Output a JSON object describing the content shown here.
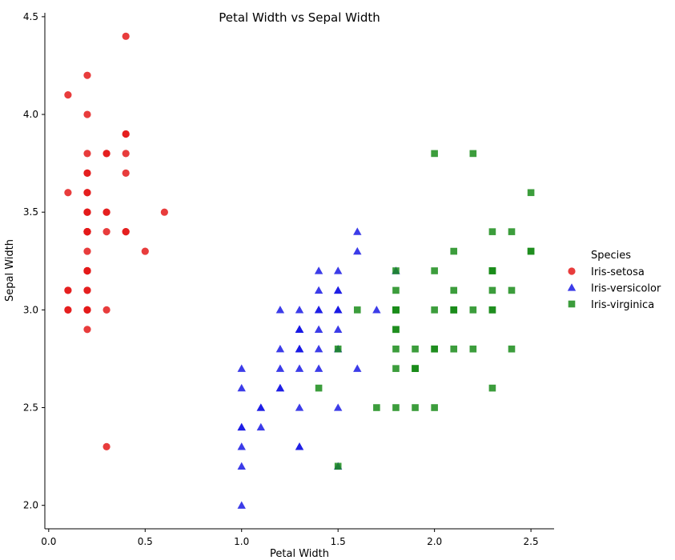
{
  "chart_data": {
    "type": "scatter",
    "title": "Petal Width vs Sepal Width",
    "xlabel": "Petal Width",
    "ylabel": "Sepal Width",
    "xlim": [
      -0.02,
      2.62
    ],
    "ylim": [
      1.88,
      4.52
    ],
    "xticks": [
      0.0,
      0.5,
      1.0,
      1.5,
      2.0,
      2.5
    ],
    "xtick_labels": [
      "0.0",
      "0.5",
      "1.0",
      "1.5",
      "2.0",
      "2.5"
    ],
    "yticks": [
      2.0,
      2.5,
      3.0,
      3.5,
      4.0,
      4.5
    ],
    "ytick_labels": [
      "2.0",
      "2.5",
      "3.0",
      "3.5",
      "4.0",
      "4.5"
    ],
    "grid": false,
    "legend_title": "Species",
    "legend_position": "right",
    "series": [
      {
        "name": "Iris-setosa",
        "color": "#e41a1a",
        "marker": "circle",
        "points": [
          [
            0.2,
            3.5
          ],
          [
            0.2,
            3.0
          ],
          [
            0.2,
            3.2
          ],
          [
            0.2,
            3.1
          ],
          [
            0.2,
            3.6
          ],
          [
            0.4,
            3.9
          ],
          [
            0.3,
            3.4
          ],
          [
            0.2,
            3.4
          ],
          [
            0.2,
            2.9
          ],
          [
            0.1,
            3.1
          ],
          [
            0.2,
            3.7
          ],
          [
            0.2,
            3.4
          ],
          [
            0.1,
            3.0
          ],
          [
            0.1,
            3.0
          ],
          [
            0.2,
            4.0
          ],
          [
            0.4,
            4.4
          ],
          [
            0.4,
            3.9
          ],
          [
            0.3,
            3.5
          ],
          [
            0.3,
            3.8
          ],
          [
            0.3,
            3.8
          ],
          [
            0.2,
            3.4
          ],
          [
            0.4,
            3.7
          ],
          [
            0.2,
            3.6
          ],
          [
            0.5,
            3.3
          ],
          [
            0.2,
            3.4
          ],
          [
            0.2,
            3.0
          ],
          [
            0.4,
            3.4
          ],
          [
            0.2,
            3.5
          ],
          [
            0.2,
            3.4
          ],
          [
            0.2,
            3.2
          ],
          [
            0.2,
            3.1
          ],
          [
            0.4,
            3.4
          ],
          [
            0.1,
            4.1
          ],
          [
            0.2,
            4.2
          ],
          [
            0.1,
            3.1
          ],
          [
            0.2,
            3.2
          ],
          [
            0.2,
            3.5
          ],
          [
            0.1,
            3.6
          ],
          [
            0.2,
            3.0
          ],
          [
            0.2,
            3.4
          ],
          [
            0.3,
            3.5
          ],
          [
            0.3,
            2.3
          ],
          [
            0.2,
            3.2
          ],
          [
            0.6,
            3.5
          ],
          [
            0.4,
            3.8
          ],
          [
            0.3,
            3.0
          ],
          [
            0.2,
            3.8
          ],
          [
            0.2,
            3.2
          ],
          [
            0.2,
            3.7
          ],
          [
            0.2,
            3.3
          ]
        ]
      },
      {
        "name": "Iris-versicolor",
        "color": "#1a1ae4",
        "marker": "triangle",
        "points": [
          [
            1.4,
            3.2
          ],
          [
            1.5,
            3.2
          ],
          [
            1.5,
            3.1
          ],
          [
            1.3,
            2.3
          ],
          [
            1.5,
            2.8
          ],
          [
            1.3,
            2.8
          ],
          [
            1.6,
            3.3
          ],
          [
            1.0,
            2.4
          ],
          [
            1.3,
            2.9
          ],
          [
            1.4,
            2.7
          ],
          [
            1.0,
            2.0
          ],
          [
            1.5,
            3.0
          ],
          [
            1.0,
            2.2
          ],
          [
            1.4,
            2.9
          ],
          [
            1.3,
            2.9
          ],
          [
            1.4,
            3.1
          ],
          [
            1.5,
            3.0
          ],
          [
            1.0,
            2.7
          ],
          [
            1.5,
            2.2
          ],
          [
            1.1,
            2.5
          ],
          [
            1.8,
            3.2
          ],
          [
            1.3,
            2.8
          ],
          [
            1.5,
            2.5
          ],
          [
            1.2,
            2.8
          ],
          [
            1.3,
            2.9
          ],
          [
            1.4,
            3.0
          ],
          [
            1.4,
            2.8
          ],
          [
            1.7,
            3.0
          ],
          [
            1.5,
            2.9
          ],
          [
            1.0,
            2.6
          ],
          [
            1.1,
            2.4
          ],
          [
            1.0,
            2.4
          ],
          [
            1.2,
            2.7
          ],
          [
            1.6,
            2.7
          ],
          [
            1.5,
            3.0
          ],
          [
            1.6,
            3.4
          ],
          [
            1.5,
            3.1
          ],
          [
            1.3,
            2.3
          ],
          [
            1.3,
            3.0
          ],
          [
            1.3,
            2.5
          ],
          [
            1.2,
            2.6
          ],
          [
            1.4,
            3.0
          ],
          [
            1.2,
            2.6
          ],
          [
            1.0,
            2.3
          ],
          [
            1.3,
            2.7
          ],
          [
            1.2,
            3.0
          ],
          [
            1.3,
            2.9
          ],
          [
            1.3,
            2.9
          ],
          [
            1.1,
            2.5
          ],
          [
            1.3,
            2.8
          ]
        ]
      },
      {
        "name": "Iris-virginica",
        "color": "#1a8c1a",
        "marker": "square",
        "points": [
          [
            2.5,
            3.3
          ],
          [
            1.9,
            2.7
          ],
          [
            2.1,
            3.0
          ],
          [
            1.8,
            2.9
          ],
          [
            2.2,
            3.0
          ],
          [
            2.1,
            3.0
          ],
          [
            1.7,
            2.5
          ],
          [
            1.8,
            2.9
          ],
          [
            1.8,
            2.5
          ],
          [
            2.5,
            3.6
          ],
          [
            2.0,
            3.2
          ],
          [
            1.9,
            2.7
          ],
          [
            2.1,
            3.0
          ],
          [
            2.0,
            2.5
          ],
          [
            2.4,
            2.8
          ],
          [
            2.3,
            3.2
          ],
          [
            1.8,
            3.0
          ],
          [
            2.2,
            3.8
          ],
          [
            2.3,
            2.6
          ],
          [
            1.5,
            2.2
          ],
          [
            2.3,
            3.2
          ],
          [
            2.0,
            2.8
          ],
          [
            2.0,
            2.8
          ],
          [
            1.8,
            2.7
          ],
          [
            2.1,
            3.3
          ],
          [
            1.8,
            3.2
          ],
          [
            1.8,
            2.8
          ],
          [
            1.8,
            3.0
          ],
          [
            2.1,
            2.8
          ],
          [
            1.6,
            3.0
          ],
          [
            1.9,
            2.8
          ],
          [
            2.0,
            3.8
          ],
          [
            2.2,
            2.8
          ],
          [
            1.5,
            2.8
          ],
          [
            1.4,
            2.6
          ],
          [
            2.3,
            3.0
          ],
          [
            2.4,
            3.4
          ],
          [
            1.8,
            3.1
          ],
          [
            1.8,
            3.0
          ],
          [
            2.1,
            3.1
          ],
          [
            2.4,
            3.1
          ],
          [
            2.3,
            3.1
          ],
          [
            1.9,
            2.7
          ],
          [
            2.3,
            3.2
          ],
          [
            2.5,
            3.3
          ],
          [
            2.3,
            3.0
          ],
          [
            1.9,
            2.5
          ],
          [
            2.0,
            3.0
          ],
          [
            2.3,
            3.4
          ],
          [
            1.8,
            3.0
          ]
        ]
      }
    ]
  }
}
